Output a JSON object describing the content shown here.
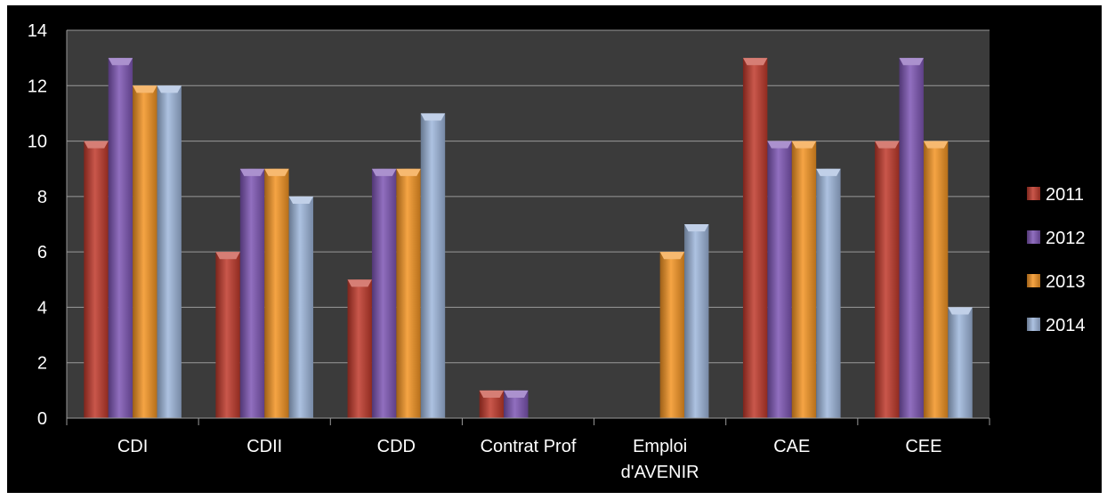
{
  "chart_data": {
    "type": "bar",
    "title": "",
    "xlabel": "",
    "ylabel": "",
    "ylim": [
      0,
      14
    ],
    "yticks": [
      0,
      2,
      4,
      6,
      8,
      10,
      12,
      14
    ],
    "grid": true,
    "legend_position": "right",
    "categories": [
      [
        "CDI"
      ],
      [
        "CDII"
      ],
      [
        "CDD"
      ],
      [
        "Contrat Prof"
      ],
      [
        "Emploi",
        "d'AVENIR"
      ],
      [
        "CAE"
      ],
      [
        "CEE"
      ]
    ],
    "series": [
      {
        "name": "2011",
        "color": "#c0392b",
        "values": [
          10,
          6,
          5,
          1,
          0,
          13,
          10
        ]
      },
      {
        "name": "2012",
        "color": "#7d55b4",
        "values": [
          13,
          9,
          9,
          1,
          0,
          10,
          13
        ]
      },
      {
        "name": "2013",
        "color": "#f39423",
        "values": [
          12,
          9,
          9,
          0,
          6,
          10,
          10
        ]
      },
      {
        "name": "2014",
        "color": "#9fb7dc",
        "values": [
          12,
          8,
          11,
          0,
          7,
          9,
          4
        ]
      }
    ]
  },
  "colors": {
    "background": "#000000",
    "plot_area": "#3b3b3b",
    "gridline": "#9a9a9a",
    "text": "#ffffff"
  }
}
